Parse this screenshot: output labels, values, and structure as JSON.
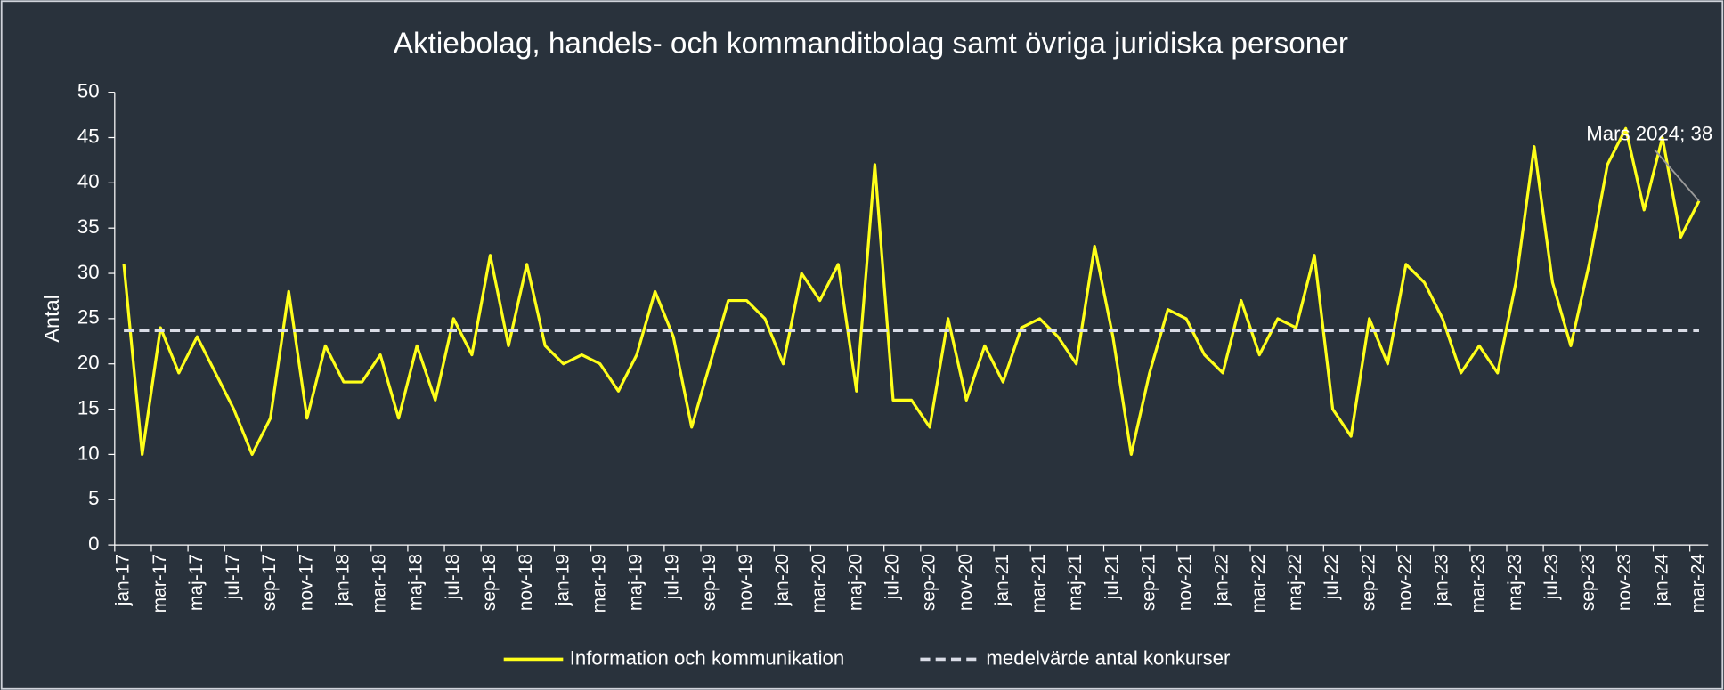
{
  "chart_data": {
    "type": "line",
    "title": "Aktiebolag, handels- och kommanditbolag samt övriga juridiska personer",
    "y_label": "Antal",
    "categories": [
      "jan-17",
      null,
      "mar-17",
      null,
      "maj-17",
      null,
      "jul-17",
      null,
      "sep-17",
      null,
      "nov-17",
      null,
      "jan-18",
      null,
      "mar-18",
      null,
      "maj-18",
      null,
      "jul-18",
      null,
      "sep-18",
      null,
      "nov-18",
      null,
      "jan-19",
      null,
      "mar-19",
      null,
      "maj-19",
      null,
      "jul-19",
      null,
      "sep-19",
      null,
      "nov-19",
      null,
      "jan-20",
      null,
      "mar-20",
      null,
      "maj-20",
      null,
      "jul-20",
      null,
      "sep-20",
      null,
      "nov-20",
      null,
      "jan-21",
      null,
      "mar-21",
      null,
      "maj-21",
      null,
      "jul-21",
      null,
      "sep-21",
      null,
      "nov-21",
      null,
      "jan-22",
      null,
      "mar-22",
      null,
      "maj-22",
      null,
      "jul-22",
      null,
      "sep-22",
      null,
      "nov-22",
      null,
      "jan-23",
      null,
      "mar-23",
      null,
      "maj-23",
      null,
      "jul-23",
      null,
      "sep-23",
      null,
      "nov-23",
      null,
      "jan-24",
      null,
      "mar-24"
    ],
    "series": [
      {
        "name": "Information och kommunikation",
        "color": "#ffff1a",
        "dashed": false,
        "values": [
          31,
          10,
          24,
          19,
          23,
          19,
          15,
          10,
          14,
          28,
          14,
          22,
          18,
          18,
          21,
          14,
          22,
          16,
          25,
          21,
          32,
          22,
          31,
          22,
          20,
          21,
          20,
          17,
          21,
          28,
          23,
          13,
          20,
          27,
          27,
          25,
          20,
          30,
          27,
          31,
          17,
          42,
          16,
          16,
          13,
          25,
          16,
          22,
          18,
          24,
          25,
          23,
          20,
          33,
          23,
          10,
          19,
          26,
          25,
          21,
          19,
          27,
          21,
          25,
          24,
          32,
          15,
          12,
          25,
          20,
          31,
          29,
          25,
          19,
          22,
          19,
          29,
          44,
          29,
          22,
          31,
          42,
          46,
          37,
          45,
          34,
          38
        ]
      },
      {
        "name": "medelvärde antal konkurser",
        "color": "#d9dce6",
        "dashed": true,
        "values": [
          23.7,
          23.7,
          23.7,
          23.7,
          23.7,
          23.7,
          23.7,
          23.7,
          23.7,
          23.7,
          23.7,
          23.7,
          23.7,
          23.7,
          23.7,
          23.7,
          23.7,
          23.7,
          23.7,
          23.7,
          23.7,
          23.7,
          23.7,
          23.7,
          23.7,
          23.7,
          23.7,
          23.7,
          23.7,
          23.7,
          23.7,
          23.7,
          23.7,
          23.7,
          23.7,
          23.7,
          23.7,
          23.7,
          23.7,
          23.7,
          23.7,
          23.7,
          23.7,
          23.7,
          23.7,
          23.7,
          23.7,
          23.7,
          23.7,
          23.7,
          23.7,
          23.7,
          23.7,
          23.7,
          23.7,
          23.7,
          23.7,
          23.7,
          23.7,
          23.7,
          23.7,
          23.7,
          23.7,
          23.7,
          23.7,
          23.7,
          23.7,
          23.7,
          23.7,
          23.7,
          23.7,
          23.7,
          23.7,
          23.7,
          23.7,
          23.7,
          23.7,
          23.7,
          23.7,
          23.7,
          23.7,
          23.7,
          23.7,
          23.7,
          23.7,
          23.7,
          23.7
        ]
      }
    ],
    "annotation": "Mars 2024; 38",
    "ylim": [
      0,
      50
    ],
    "yticks": [
      0,
      5,
      10,
      15,
      20,
      25,
      30,
      35,
      40,
      45,
      50
    ],
    "grid": false,
    "legend": "bottom"
  }
}
